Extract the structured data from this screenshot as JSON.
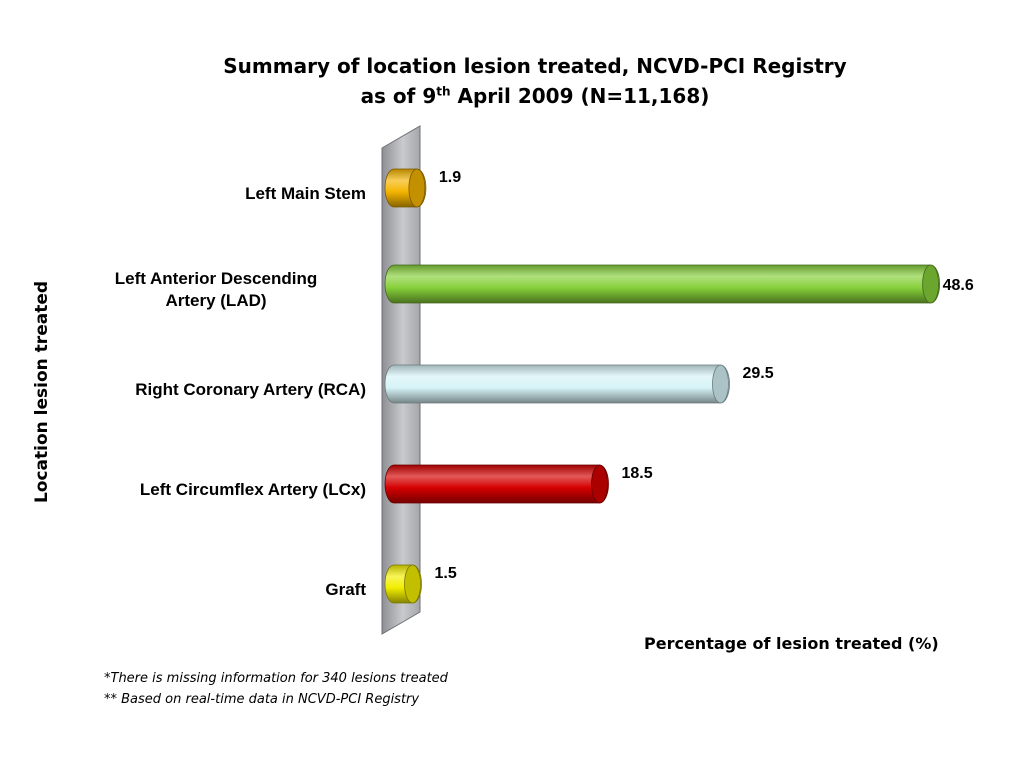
{
  "chart_data": {
    "type": "bar",
    "orientation": "horizontal",
    "title": "Summary of location lesion treated, NCVD-PCI Registry",
    "subtitle_prefix": "as of 9",
    "subtitle_sup": "th",
    "subtitle_suffix": " April 2009 (N=11,168)",
    "xlabel": "Percentage of lesion treated (%)",
    "ylabel": "Location lesion treated",
    "xlim": [
      0,
      50
    ],
    "grid": false,
    "categories": [
      "Left Main Stem",
      "Left Anterior Descending Artery (LAD)",
      "Right Coronary Artery (RCA)",
      "Left Circumflex Artery (LCx)",
      "Graft"
    ],
    "category_lines": [
      [
        "Left Main Stem"
      ],
      [
        "Left Anterior Descending",
        "Artery (LAD)"
      ],
      [
        "Right Coronary Artery (RCA)"
      ],
      [
        "Left Circumflex Artery (LCx)"
      ],
      [
        "Graft"
      ]
    ],
    "values": [
      1.9,
      48.6,
      29.5,
      18.5,
      1.5
    ],
    "value_labels": [
      "1.9",
      "48.6",
      "29.5",
      "18.5",
      "1.5"
    ],
    "colors": [
      "#f4b400",
      "#86d03a",
      "#d6f3f7",
      "#d40000",
      "#f2ee00"
    ]
  },
  "footnotes": [
    "*There is missing information for 340 lesions treated",
    "** Based on real-time data in NCVD-PCI Registry"
  ]
}
